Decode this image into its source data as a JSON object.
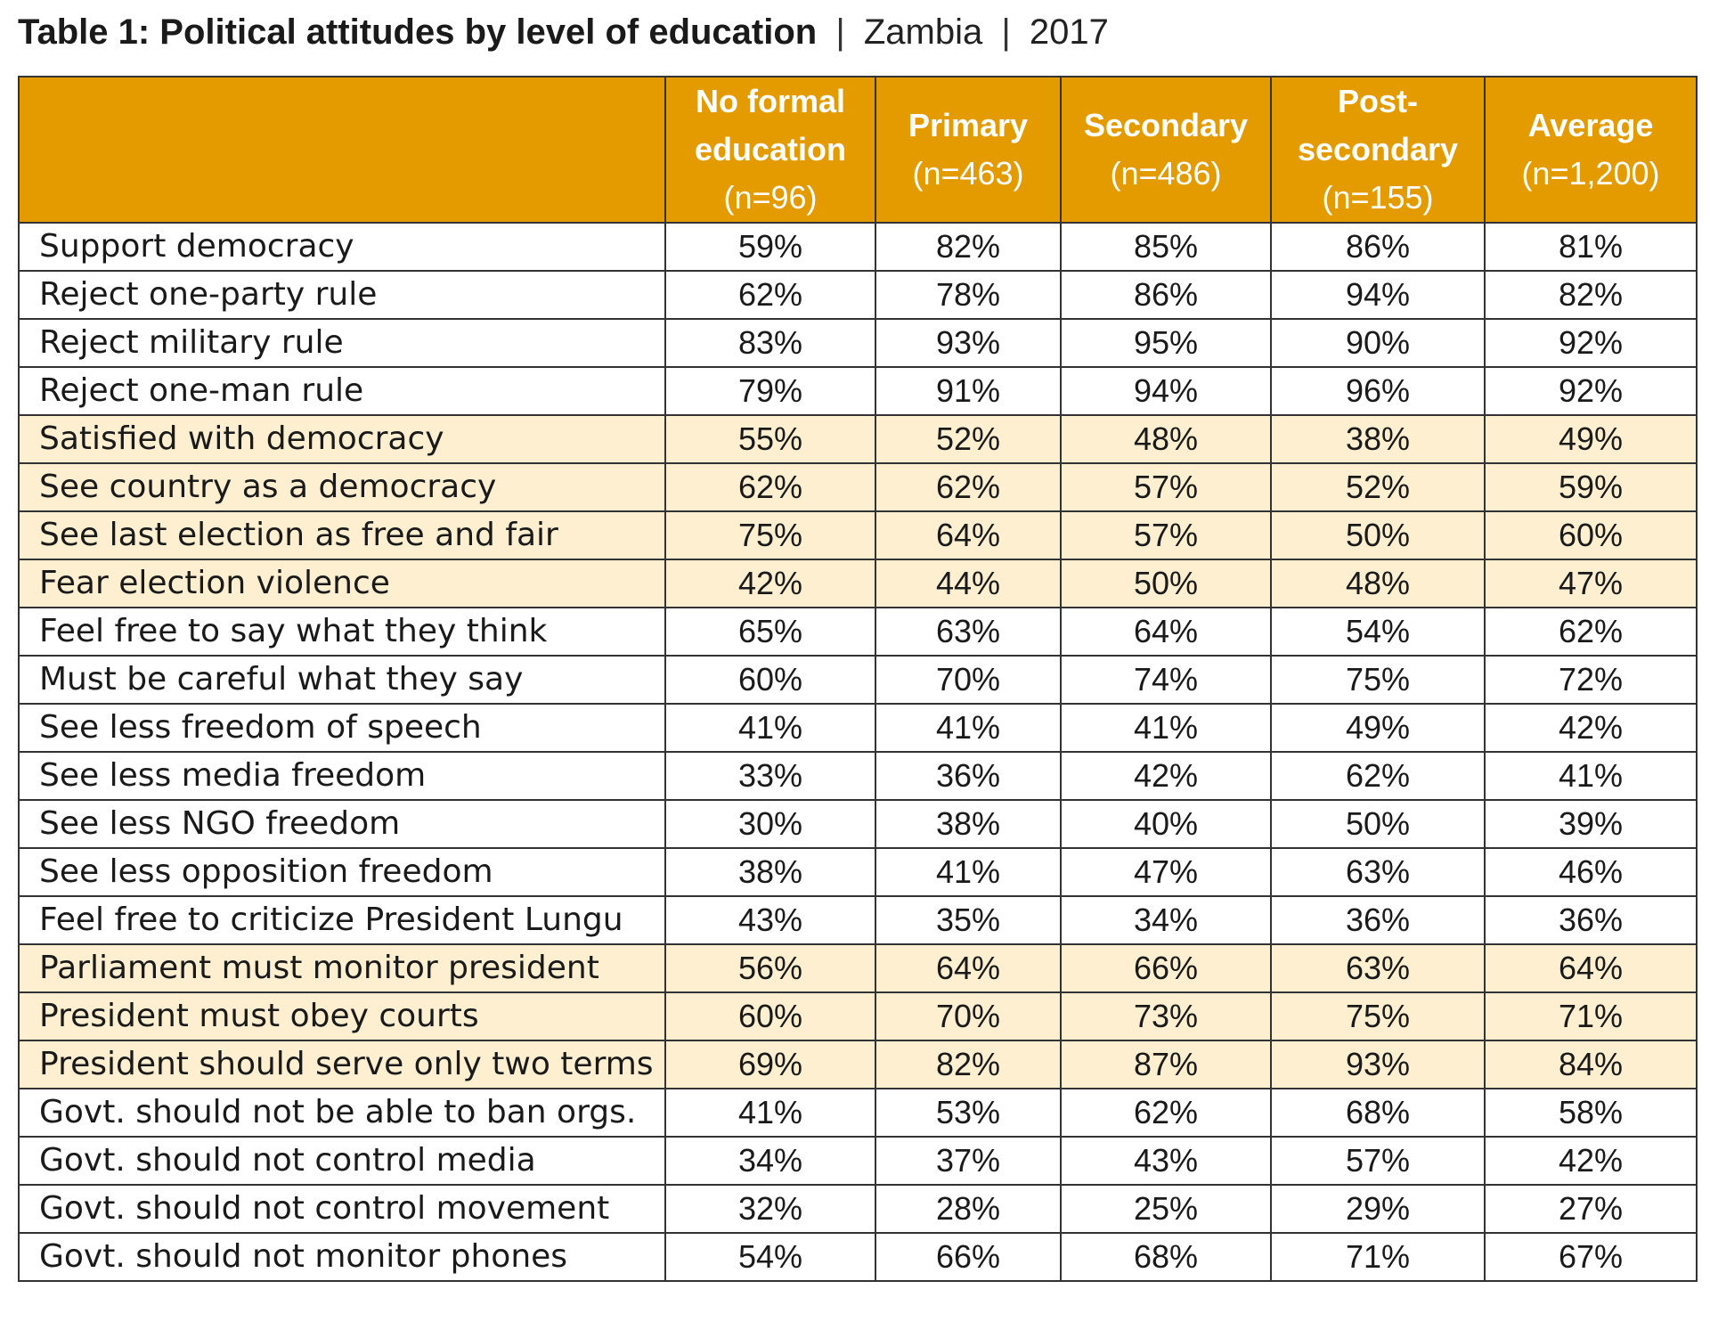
{
  "title": {
    "main": "Table 1: Political attitudes by level of education",
    "separator": "|",
    "country": "Zambia",
    "year": "2017"
  },
  "colors": {
    "header_bg": "#e39b00",
    "header_text": "#ffffff",
    "highlight_row_bg": "#fdefd0",
    "border": "#333333"
  },
  "chart_data": {
    "type": "table",
    "title": "Table 1: Political attitudes by level of education | Zambia | 2017",
    "columns": [
      {
        "label_lines": [
          "No formal",
          "education"
        ],
        "n": "(n=96)"
      },
      {
        "label_lines": [
          "Primary"
        ],
        "n": "(n=463)"
      },
      {
        "label_lines": [
          "Secondary"
        ],
        "n": "(n=486)"
      },
      {
        "label_lines": [
          "Post-",
          "secondary"
        ],
        "n": "(n=155)"
      },
      {
        "label_lines": [
          "Average"
        ],
        "n": "(n=1,200)"
      }
    ],
    "rows": [
      {
        "label": "Support democracy",
        "values": [
          "59%",
          "82%",
          "85%",
          "86%",
          "81%"
        ],
        "shaded": false
      },
      {
        "label": "Reject one-party rule",
        "values": [
          "62%",
          "78%",
          "86%",
          "94%",
          "82%"
        ],
        "shaded": false
      },
      {
        "label": "Reject military rule",
        "values": [
          "83%",
          "93%",
          "95%",
          "90%",
          "92%"
        ],
        "shaded": false
      },
      {
        "label": "Reject one-man rule",
        "values": [
          "79%",
          "91%",
          "94%",
          "96%",
          "92%"
        ],
        "shaded": false
      },
      {
        "label": "Satisfied with democracy",
        "values": [
          "55%",
          "52%",
          "48%",
          "38%",
          "49%"
        ],
        "shaded": true
      },
      {
        "label": "See country as a democracy",
        "values": [
          "62%",
          "62%",
          "57%",
          "52%",
          "59%"
        ],
        "shaded": true
      },
      {
        "label": "See last election as free and fair",
        "values": [
          "75%",
          "64%",
          "57%",
          "50%",
          "60%"
        ],
        "shaded": true
      },
      {
        "label": "Fear election violence",
        "values": [
          "42%",
          "44%",
          "50%",
          "48%",
          "47%"
        ],
        "shaded": true
      },
      {
        "label": "Feel free to say what they think",
        "values": [
          "65%",
          "63%",
          "64%",
          "54%",
          "62%"
        ],
        "shaded": false
      },
      {
        "label": "Must be careful what they say",
        "values": [
          "60%",
          "70%",
          "74%",
          "75%",
          "72%"
        ],
        "shaded": false
      },
      {
        "label": "See less freedom of speech",
        "values": [
          "41%",
          "41%",
          "41%",
          "49%",
          "42%"
        ],
        "shaded": false
      },
      {
        "label": "See less media freedom",
        "values": [
          "33%",
          "36%",
          "42%",
          "62%",
          "41%"
        ],
        "shaded": false
      },
      {
        "label": "See less NGO freedom",
        "values": [
          "30%",
          "38%",
          "40%",
          "50%",
          "39%"
        ],
        "shaded": false
      },
      {
        "label": "See less opposition freedom",
        "values": [
          "38%",
          "41%",
          "47%",
          "63%",
          "46%"
        ],
        "shaded": false
      },
      {
        "label": "Feel free to criticize President Lungu",
        "values": [
          "43%",
          "35%",
          "34%",
          "36%",
          "36%"
        ],
        "shaded": false
      },
      {
        "label": "Parliament must monitor president",
        "values": [
          "56%",
          "64%",
          "66%",
          "63%",
          "64%"
        ],
        "shaded": true
      },
      {
        "label": "President must obey courts",
        "values": [
          "60%",
          "70%",
          "73%",
          "75%",
          "71%"
        ],
        "shaded": true
      },
      {
        "label": "President should serve only two terms",
        "values": [
          "69%",
          "82%",
          "87%",
          "93%",
          "84%"
        ],
        "shaded": true
      },
      {
        "label": "Govt. should not be able to ban orgs.",
        "values": [
          "41%",
          "53%",
          "62%",
          "68%",
          "58%"
        ],
        "shaded": false
      },
      {
        "label": "Govt. should not control media",
        "values": [
          "34%",
          "37%",
          "43%",
          "57%",
          "42%"
        ],
        "shaded": false
      },
      {
        "label": "Govt. should not control movement",
        "values": [
          "32%",
          "28%",
          "25%",
          "29%",
          "27%"
        ],
        "shaded": false
      },
      {
        "label": "Govt. should not monitor phones",
        "values": [
          "54%",
          "66%",
          "68%",
          "71%",
          "67%"
        ],
        "shaded": false
      }
    ]
  }
}
